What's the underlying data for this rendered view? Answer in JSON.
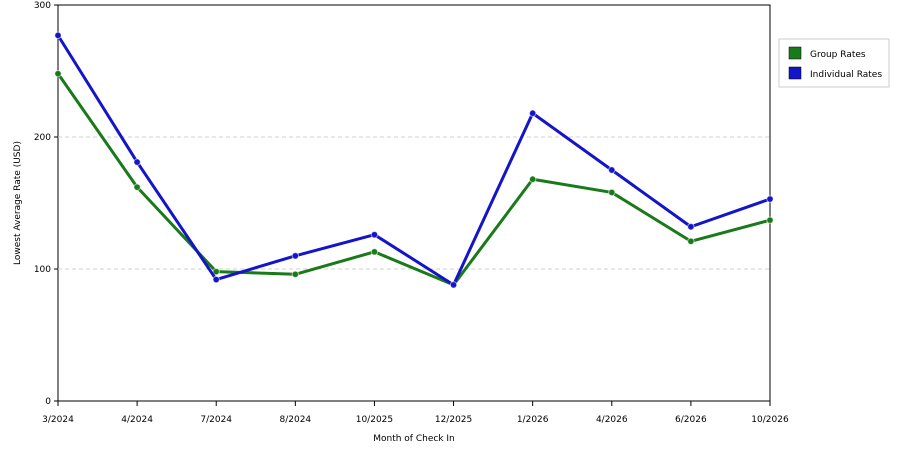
{
  "chart_data": {
    "type": "line",
    "title": "",
    "xlabel": "Month of Check In",
    "ylabel": "Lowest Average Rate (USD)",
    "categories": [
      "3/2024",
      "4/2024",
      "7/2024",
      "8/2024",
      "10/2025",
      "12/2025",
      "1/2026",
      "4/2026",
      "6/2026",
      "10/2026"
    ],
    "ylim": [
      0,
      300
    ],
    "yticks": [
      0,
      100,
      200,
      300
    ],
    "grid": true,
    "legend_position": "top-right",
    "series": [
      {
        "name": "Group Rates",
        "color": "#1a7a1a",
        "values": [
          248,
          162,
          98,
          96,
          113,
          88,
          168,
          158,
          121,
          137
        ]
      },
      {
        "name": "Individual Rates",
        "color": "#1414c8",
        "values": [
          277,
          181,
          92,
          110,
          126,
          88,
          218,
          175,
          132,
          153
        ]
      }
    ]
  }
}
